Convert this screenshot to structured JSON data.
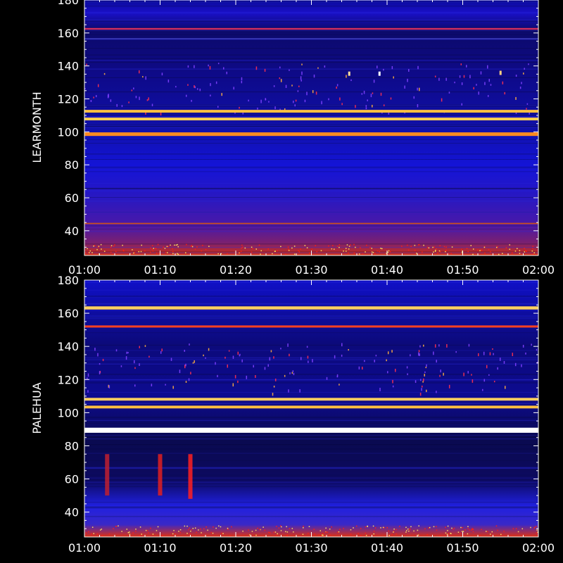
{
  "chart_data": [
    {
      "type": "heatmap",
      "ylabel": "LEARMONTH",
      "xlabel": "",
      "xticks": [
        "01:00",
        "01:10",
        "01:20",
        "01:30",
        "01:40",
        "01:50",
        "02:00"
      ],
      "yticks": [
        40,
        60,
        80,
        100,
        120,
        140,
        160,
        180
      ],
      "xlim": [
        "01:00",
        "02:00"
      ],
      "ylim": [
        25,
        180
      ],
      "emission_lines": [
        {
          "y": 112.5,
          "intensity": "high",
          "color": "#ffc040",
          "width": 1.3
        },
        {
          "y": 107.8,
          "intensity": "high",
          "color": "#ffd050",
          "width": 1.3
        },
        {
          "y": 98.6,
          "intensity": "high",
          "color": "#ff8a20",
          "width": 1.7
        },
        {
          "y": 162.5,
          "intensity": "medium",
          "color": "#d43060",
          "width": 0.8
        },
        {
          "y": 156.5,
          "intensity": "low",
          "color": "#4040c0",
          "width": 0.5
        },
        {
          "y": 44.4,
          "intensity": "medium",
          "color": "#c85020",
          "width": 0.6
        }
      ],
      "bursts": [
        {
          "x": "01:35",
          "y": 135.3,
          "color": "#ffe0a0"
        },
        {
          "x": "01:39",
          "y": 135.3,
          "color": "#ffffff"
        },
        {
          "x": "01:55",
          "y": 135.8,
          "color": "#ffd080"
        }
      ],
      "colormap": [
        "#000028",
        "#0000ff",
        "#ff0000",
        "#ffff00",
        "#ffffff"
      ]
    },
    {
      "type": "heatmap",
      "ylabel": "PALEHUA",
      "xlabel": "",
      "xticks": [
        "01:00",
        "01:10",
        "01:20",
        "01:30",
        "01:40",
        "01:50",
        "02:00"
      ],
      "yticks": [
        40,
        60,
        80,
        100,
        120,
        140,
        160,
        180
      ],
      "xlim": [
        "01:00",
        "02:00"
      ],
      "ylim": [
        25,
        180
      ],
      "emission_lines": [
        {
          "y": 163.2,
          "intensity": "high",
          "color": "#ffd060",
          "width": 1.5
        },
        {
          "y": 152.0,
          "intensity": "high",
          "color": "#ff4020",
          "width": 1.0
        },
        {
          "y": 108.1,
          "intensity": "high",
          "color": "#ffd060",
          "width": 1.3
        },
        {
          "y": 103.4,
          "intensity": "high",
          "color": "#ffc040",
          "width": 1.3
        },
        {
          "y": 89.4,
          "intensity": "very high",
          "color": "#ffffff",
          "width": 2.4
        }
      ],
      "bursts": [
        {
          "x": "01:03",
          "y_range": [
            50,
            75
          ],
          "color": "#c02030"
        },
        {
          "x": "01:10",
          "y_range": [
            50,
            75
          ],
          "color": "#e02020"
        },
        {
          "x": "01:14",
          "y_range": [
            48,
            75
          ],
          "color": "#ff2020"
        }
      ],
      "colormap": [
        "#000028",
        "#0000ff",
        "#ff0000",
        "#ffff00",
        "#ffffff"
      ]
    }
  ]
}
